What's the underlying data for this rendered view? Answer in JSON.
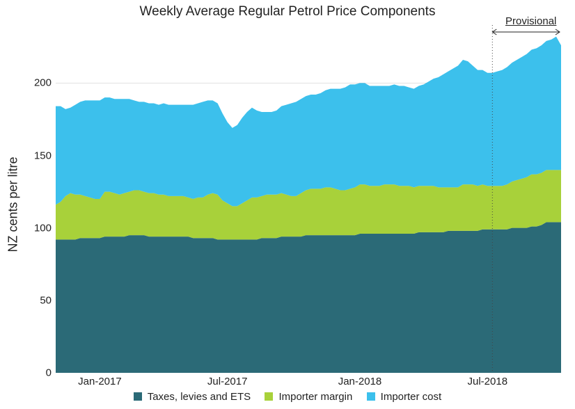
{
  "chart": {
    "type": "area-stacked",
    "title": "Weekly Average Regular Petrol Price Components",
    "ylabel": "NZ cents per litre",
    "title_fontsize": 19,
    "label_fontsize": 18,
    "tick_fontsize": 15,
    "background_color": "#ffffff",
    "grid_color": "#d0d0d0",
    "grid_width": 0.6,
    "ylim": [
      0,
      240
    ],
    "ytick_step": 50,
    "yticks": [
      0,
      50,
      100,
      150,
      200
    ],
    "x_count": 104,
    "xtick_positions": [
      9,
      35,
      62,
      88
    ],
    "xtick_labels": [
      "Jan-2017",
      "Jul-2017",
      "Jan-2018",
      "Jul-2018"
    ],
    "provisional": {
      "label": "Provisional",
      "x_index": 89,
      "line_color": "#444444",
      "line_dash": "1,3"
    },
    "legend": [
      {
        "label": "Taxes, levies and ETS",
        "color": "#2b6a77"
      },
      {
        "label": "Importer margin",
        "color": "#a8d13a"
      },
      {
        "label": "Importer cost",
        "color": "#3cc0ec"
      }
    ],
    "series": {
      "taxes": {
        "color": "#2b6a77",
        "values": [
          92,
          92,
          92,
          92,
          92,
          93,
          93,
          93,
          93,
          93,
          94,
          94,
          94,
          94,
          94,
          95,
          95,
          95,
          95,
          94,
          94,
          94,
          94,
          94,
          94,
          94,
          94,
          94,
          93,
          93,
          93,
          93,
          93,
          92,
          92,
          92,
          92,
          92,
          92,
          92,
          92,
          92,
          93,
          93,
          93,
          93,
          94,
          94,
          94,
          94,
          94,
          95,
          95,
          95,
          95,
          95,
          95,
          95,
          95,
          95,
          95,
          95,
          96,
          96,
          96,
          96,
          96,
          96,
          96,
          96,
          96,
          96,
          96,
          96,
          97,
          97,
          97,
          97,
          97,
          97,
          98,
          98,
          98,
          98,
          98,
          98,
          98,
          99,
          99,
          99,
          99,
          99,
          99,
          100,
          100,
          100,
          100,
          101,
          101,
          102,
          104,
          104,
          104,
          104
        ]
      },
      "margin": {
        "color": "#a8d13a",
        "values": [
          24,
          26,
          30,
          32,
          31,
          30,
          29,
          28,
          27,
          27,
          31,
          31,
          30,
          29,
          30,
          30,
          31,
          31,
          30,
          30,
          30,
          29,
          29,
          28,
          28,
          28,
          28,
          27,
          27,
          28,
          28,
          30,
          31,
          31,
          27,
          25,
          23,
          23,
          25,
          27,
          29,
          29,
          29,
          30,
          30,
          30,
          30,
          29,
          28,
          28,
          30,
          31,
          32,
          32,
          32,
          33,
          33,
          32,
          31,
          31,
          32,
          33,
          34,
          34,
          33,
          33,
          33,
          34,
          34,
          34,
          33,
          33,
          33,
          32,
          32,
          32,
          32,
          32,
          31,
          31,
          30,
          30,
          30,
          32,
          32,
          32,
          31,
          31,
          30,
          30,
          30,
          30,
          31,
          32,
          33,
          34,
          35,
          36,
          36,
          36,
          36,
          36,
          36,
          36
        ]
      },
      "importer_cost": {
        "color": "#3cc0ec",
        "values": [
          68,
          66,
          60,
          59,
          62,
          64,
          66,
          67,
          68,
          68,
          65,
          65,
          65,
          66,
          65,
          64,
          62,
          61,
          62,
          62,
          62,
          62,
          63,
          63,
          63,
          63,
          63,
          64,
          65,
          65,
          66,
          65,
          64,
          63,
          60,
          56,
          54,
          56,
          59,
          61,
          62,
          60,
          58,
          57,
          57,
          58,
          60,
          62,
          64,
          65,
          65,
          65,
          65,
          65,
          66,
          67,
          68,
          69,
          70,
          71,
          72,
          71,
          70,
          70,
          69,
          69,
          69,
          68,
          68,
          69,
          69,
          69,
          68,
          68,
          69,
          70,
          72,
          74,
          76,
          78,
          80,
          82,
          84,
          86,
          85,
          82,
          80,
          79,
          78,
          78,
          79,
          80,
          81,
          82,
          83,
          84,
          85,
          86,
          87,
          88,
          89,
          90,
          92,
          86
        ]
      }
    }
  }
}
